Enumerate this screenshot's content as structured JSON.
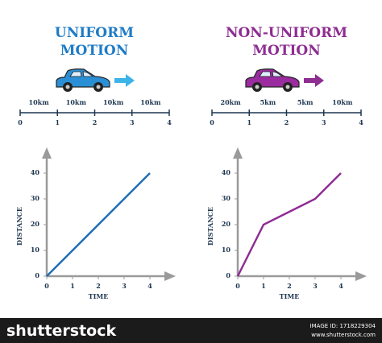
{
  "chart_data": [
    {
      "type": "line",
      "title": "UNIFORM MOTION",
      "track": {
        "segments": [
          "10km",
          "10km",
          "10km",
          "10km"
        ],
        "ticks": [
          0,
          1,
          2,
          3,
          4
        ]
      },
      "x": [
        0,
        1,
        2,
        3,
        4
      ],
      "series": [
        {
          "name": "Uniform",
          "color": "#1f6db5",
          "values": [
            0,
            10,
            20,
            30,
            40
          ]
        }
      ],
      "x_label": "TIME",
      "y_label": "DISTANCE",
      "xlim": [
        0,
        5
      ],
      "ylim": [
        0,
        50
      ],
      "xticks": [
        0,
        1,
        2,
        3,
        4
      ],
      "yticks": [
        0,
        10,
        20,
        30,
        40
      ],
      "title_color": "#1e7cc7",
      "car_color": "#2b8fd6",
      "arrow_color": "#3db4e8"
    },
    {
      "type": "line",
      "title": "NON-UNIFORM MOTION",
      "track": {
        "segments": [
          "20km",
          "5km",
          "5km",
          "10km"
        ],
        "ticks": [
          0,
          1,
          2,
          3,
          4
        ]
      },
      "x": [
        0,
        1,
        2,
        3,
        4
      ],
      "series": [
        {
          "name": "Non-uniform",
          "color": "#8e2d92",
          "values": [
            0,
            20,
            25,
            30,
            40
          ]
        }
      ],
      "x_label": "TIME",
      "y_label": "DISTANCE",
      "xlim": [
        0,
        5
      ],
      "ylim": [
        0,
        50
      ],
      "xticks": [
        0,
        1,
        2,
        3,
        4
      ],
      "yticks": [
        0,
        10,
        20,
        30,
        40
      ],
      "title_color": "#8e2d92",
      "car_color": "#9b2c9f",
      "arrow_color": "#8e2d92"
    }
  ],
  "footer": {
    "brand": "shutterstock",
    "image_id": "IMAGE ID: 1718229304",
    "url": "www.shutterstock.com"
  }
}
